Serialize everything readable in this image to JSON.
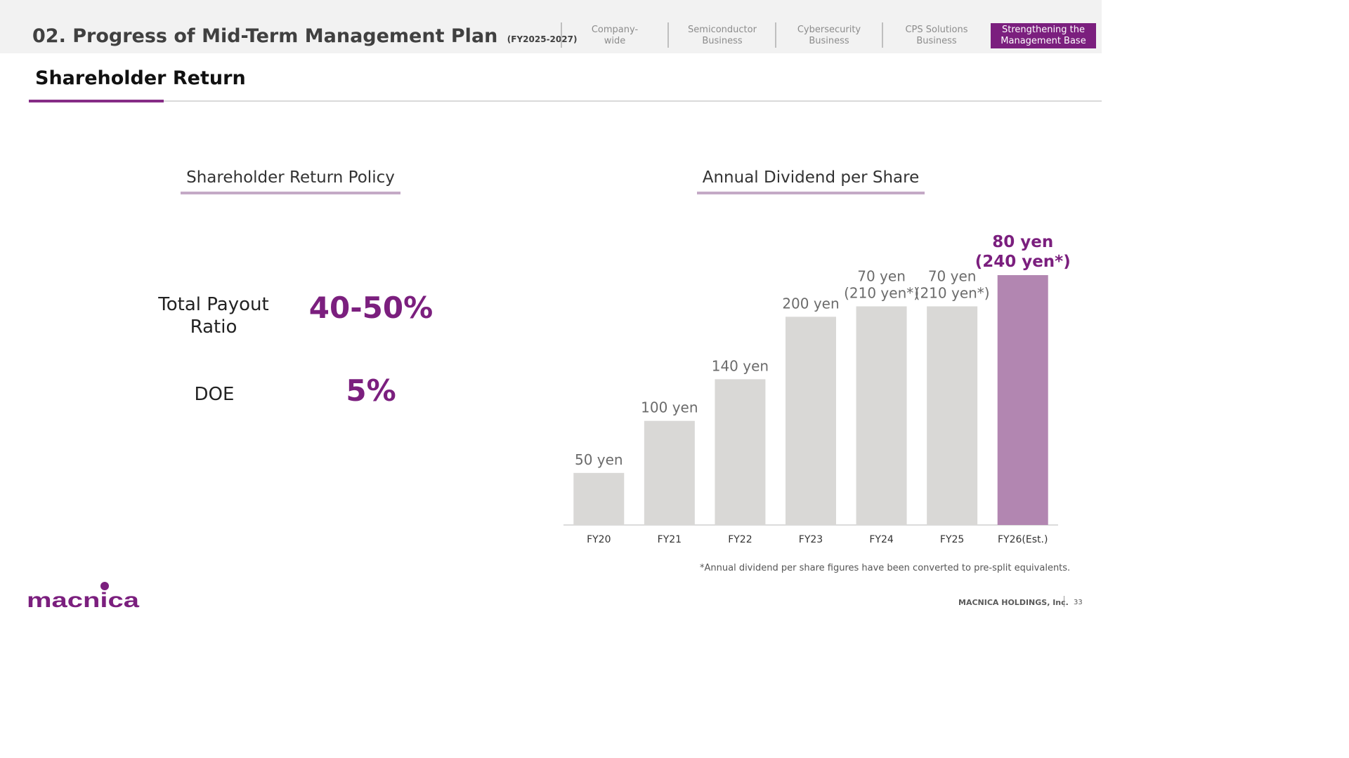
{
  "header": {
    "title": "02. Progress of Mid-Term Management Plan",
    "title_sub": "(FY2025-2027)",
    "tabs": [
      {
        "label": "Company-\nwide",
        "active": false
      },
      {
        "label": "Semiconductor\nBusiness",
        "active": false
      },
      {
        "label": "Cybersecurity\nBusiness",
        "active": false
      },
      {
        "label": "CPS Solutions\nBusiness",
        "active": false
      },
      {
        "label": "Strengthening the\nManagement Base",
        "active": true
      }
    ]
  },
  "section_title": "Shareholder Return",
  "policy": {
    "heading": "Shareholder Return Policy",
    "items": [
      {
        "label": "Total Payout\nRatio",
        "value": "40-50%"
      },
      {
        "label": "DOE",
        "value": "5%"
      }
    ]
  },
  "dividend": {
    "heading": "Annual Dividend per Share"
  },
  "chart_data": {
    "type": "bar",
    "title": "Annual Dividend per Share",
    "categories": [
      "FY20",
      "FY21",
      "FY22",
      "FY23",
      "FY24",
      "FY25",
      "FY26(Est.)"
    ],
    "values": [
      50,
      100,
      140,
      200,
      210,
      210,
      240
    ],
    "data_labels": [
      [
        "50 yen"
      ],
      [
        "100 yen"
      ],
      [
        "140 yen"
      ],
      [
        "200 yen"
      ],
      [
        "70 yen",
        "(210 yen*)"
      ],
      [
        "70 yen",
        "(210 yen*)"
      ],
      [
        "80 yen",
        "(240 yen*)"
      ]
    ],
    "highlight_index": 6,
    "colors": {
      "bar": "#d9d8d6",
      "highlight": "#b286b1",
      "highlight_label": "#7b1f7e",
      "label": "#6b6b6b"
    },
    "ylim": [
      0,
      240
    ],
    "grid": false,
    "legend": "none",
    "xlabel": "",
    "ylabel": ""
  },
  "footnote": "*Annual dividend per share figures have been converted to pre-split equivalents.",
  "footer": {
    "logo_text": "MACNICA",
    "company": "MACNICA HOLDINGS, Inc.",
    "page": "33"
  }
}
